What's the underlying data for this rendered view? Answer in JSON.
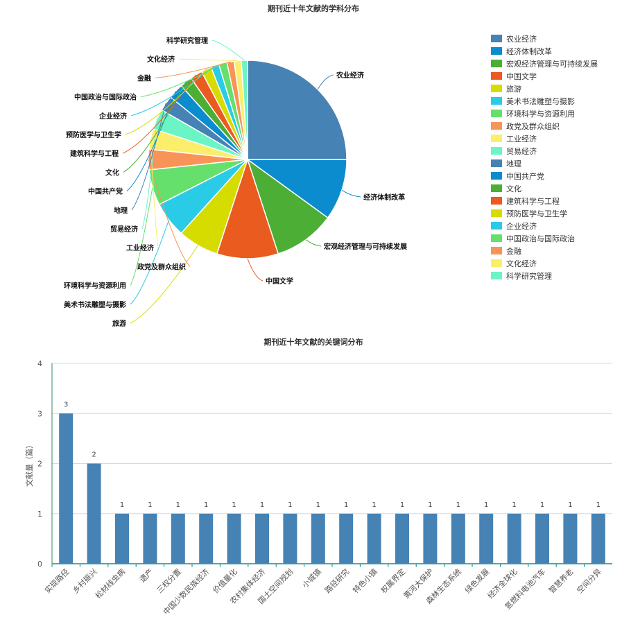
{
  "chart_data": [
    {
      "type": "pie",
      "title": "期刊近十年文献的学科分布",
      "legend_position": "right",
      "slices": [
        {
          "label": "农业经济",
          "value": 15,
          "color": "#4682b4"
        },
        {
          "label": "经济体制改革",
          "value": 6,
          "color": "#0a8ccf"
        },
        {
          "label": "宏观经济管理与可持续发展",
          "value": 6,
          "color": "#4cae34"
        },
        {
          "label": "中国文学",
          "value": 6,
          "color": "#ea5b1f"
        },
        {
          "label": "旅游",
          "value": 4,
          "color": "#d7dc00"
        },
        {
          "label": "美术书法雕塑与摄影",
          "value": 3.5,
          "color": "#2acbe6"
        },
        {
          "label": "环境科学与资源利用",
          "value": 3.5,
          "color": "#66e06c"
        },
        {
          "label": "政党及群众组织",
          "value": 2,
          "color": "#f89457"
        },
        {
          "label": "工业经济",
          "value": 2,
          "color": "#fbee6b"
        },
        {
          "label": "贸易经济",
          "value": 2,
          "color": "#6cf5c4"
        },
        {
          "label": "地理",
          "value": 1.5,
          "color": "#4682b4"
        },
        {
          "label": "中国共产党",
          "value": 1.5,
          "color": "#0a8ccf"
        },
        {
          "label": "文化",
          "value": 1.2,
          "color": "#4cae34"
        },
        {
          "label": "建筑科学与工程",
          "value": 1.2,
          "color": "#ea5b1f"
        },
        {
          "label": "预防医学与卫生学",
          "value": 1,
          "color": "#d7dc00"
        },
        {
          "label": "企业经济",
          "value": 0.8,
          "color": "#2acbe6"
        },
        {
          "label": "中国政治与国际政治",
          "value": 0.8,
          "color": "#66e06c"
        },
        {
          "label": "金融",
          "value": 0.7,
          "color": "#f89457"
        },
        {
          "label": "文化经济",
          "value": 0.7,
          "color": "#fbee6b"
        },
        {
          "label": "科学研究管理",
          "value": 0.6,
          "color": "#6cf5c4"
        }
      ]
    },
    {
      "type": "bar",
      "title": "期刊近十年文献的关键词分布",
      "ylabel": "文献量（篇）",
      "xlabel": "",
      "ylim": [
        0,
        4
      ],
      "yticks": [
        0,
        1,
        2,
        3,
        4
      ],
      "grid": true,
      "bar_color": "#4682b4",
      "categories": [
        "实现路径",
        "乡村振兴",
        "松材线虫病",
        "遗产",
        "三权分置",
        "中国少数民族经济",
        "价值量化",
        "农村集体经济",
        "国土空间规划",
        "小城镇",
        "路径研究",
        "特色小镇",
        "权属界定",
        "黄河大保护",
        "森林生态系统",
        "绿色发展",
        "经济全球化",
        "氢燃料电池汽车",
        "智慧养老",
        "空间分异"
      ],
      "values": [
        3,
        2,
        1,
        1,
        1,
        1,
        1,
        1,
        1,
        1,
        1,
        1,
        1,
        1,
        1,
        1,
        1,
        1,
        1,
        1
      ]
    }
  ]
}
